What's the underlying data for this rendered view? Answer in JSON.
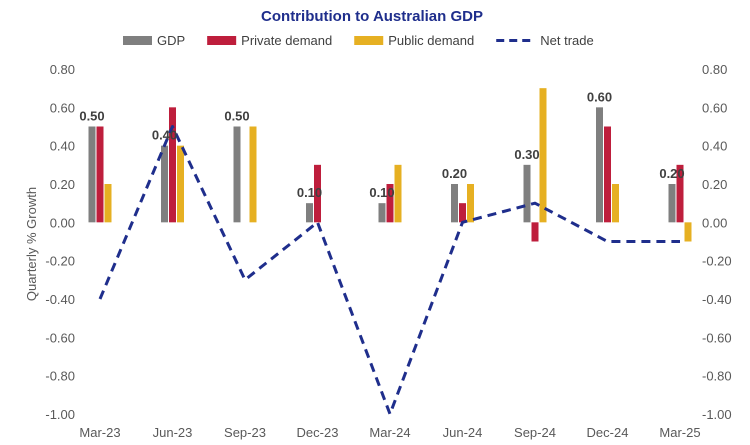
{
  "chart_data": {
    "type": "bar",
    "title": "Contribution to Australian GDP",
    "ylabel": "Quarterly % Growth",
    "xlabel": "",
    "categories": [
      "Mar-23",
      "Jun-23",
      "Sep-23",
      "Dec-23",
      "Mar-24",
      "Jun-24",
      "Sep-24",
      "Dec-24",
      "Mar-25"
    ],
    "ylim": [
      -1.0,
      0.8
    ],
    "yticks": [
      "0.80",
      "0.60",
      "0.40",
      "0.20",
      "0.00",
      "-0.20",
      "-0.40",
      "-0.60",
      "-0.80",
      "-1.00"
    ],
    "ytick_values": [
      0.8,
      0.6,
      0.4,
      0.2,
      0.0,
      -0.2,
      -0.4,
      -0.6,
      -0.8,
      -1.0
    ],
    "secondary_yaxis": true,
    "grid": false,
    "legend_position": "top",
    "series": [
      {
        "name": "GDP",
        "type": "bar",
        "color": "#7f7f7f",
        "values": [
          0.5,
          0.4,
          0.5,
          0.1,
          0.1,
          0.2,
          0.3,
          0.6,
          0.2
        ]
      },
      {
        "name": "Private demand",
        "type": "bar",
        "color": "#be1e3c",
        "values": [
          0.5,
          0.6,
          0.0,
          0.3,
          0.2,
          0.1,
          -0.1,
          0.5,
          0.3
        ]
      },
      {
        "name": "Public demand",
        "type": "bar",
        "color": "#e6b022",
        "values": [
          0.2,
          0.4,
          0.5,
          0.0,
          0.3,
          0.2,
          0.7,
          0.2,
          -0.1
        ]
      },
      {
        "name": "Net trade",
        "type": "line",
        "style": "dashed",
        "color": "#1f2e8c",
        "values": [
          -0.4,
          0.5,
          -0.3,
          0.0,
          -1.0,
          0.0,
          0.1,
          -0.1,
          -0.1
        ]
      }
    ],
    "data_labels": {
      "series": "GDP",
      "texts": [
        "0.50",
        "0.40",
        "0.50",
        "0.10",
        "0.10",
        "0.20",
        "0.30",
        "0.60",
        "0.20"
      ]
    }
  }
}
